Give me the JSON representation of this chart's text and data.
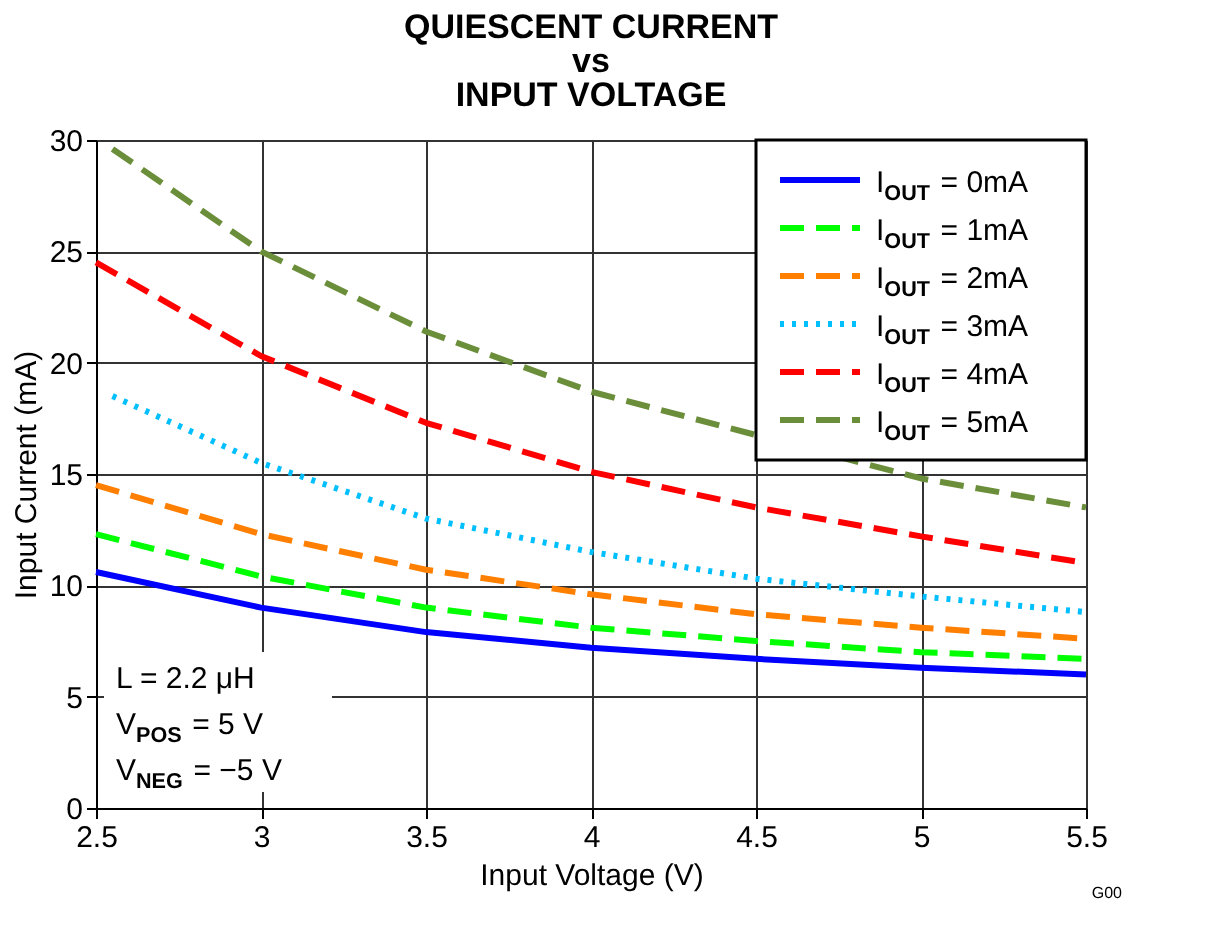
{
  "chart_data": {
    "type": "line",
    "title": "QUIESCENT CURRENT\nvs\nINPUT VOLTAGE",
    "xlabel": "Input Voltage (V)",
    "ylabel": "Input Current (mA)",
    "x": [
      2.5,
      3,
      3.5,
      4,
      4.5,
      5,
      5.5
    ],
    "series": [
      {
        "name": "I$_{OUT}$ = 0mA",
        "color": "#0000ff",
        "line_style": "solid",
        "values": [
          10.6,
          9.0,
          7.9,
          7.2,
          6.7,
          6.3,
          6.0
        ]
      },
      {
        "name": "I$_{OUT}$ = 1mA",
        "color": "#00ff00",
        "line_style": "dashed",
        "values": [
          12.3,
          10.4,
          9.0,
          8.1,
          7.5,
          7.0,
          6.7
        ]
      },
      {
        "name": "I$_{OUT}$ = 2mA",
        "color": "#ff7f00",
        "line_style": "dashed",
        "values": [
          14.5,
          12.3,
          10.7,
          9.6,
          8.7,
          8.1,
          7.6
        ]
      },
      {
        "name": "I$_{OUT}$ = 3mA",
        "color": "#00bfff",
        "line_style": "dotted",
        "x": [
          2.55,
          3,
          3.5,
          4,
          4.5,
          5,
          5.5
        ],
        "values": [
          18.5,
          15.5,
          13.0,
          11.5,
          10.3,
          9.5,
          8.8
        ]
      },
      {
        "name": "I$_{OUT}$ = 4mA",
        "color": "#ff0000",
        "line_style": "dashed",
        "values": [
          24.5,
          20.3,
          17.3,
          15.1,
          13.5,
          12.2,
          11.0
        ]
      },
      {
        "name": "I$_{OUT}$ = 5mA",
        "color": "#6b8e3a",
        "line_style": "dashed",
        "x": [
          2.55,
          3,
          3.5,
          4,
          5,
          5.5
        ],
        "values": [
          29.6,
          25.0,
          21.4,
          18.7,
          14.8,
          13.5
        ]
      }
    ],
    "xlim": [
      2.5,
      5.5
    ],
    "xticks": [
      2.5,
      3,
      3.5,
      4,
      4.5,
      5,
      5.5
    ],
    "ylim": [
      0,
      30
    ],
    "yticks": [
      0,
      5,
      10,
      15,
      20,
      25,
      30
    ],
    "grid": true,
    "legend": "top right",
    "annotations": [
      "L = 2.2 μH",
      "V$_{POS}$ = 5 V",
      "V$_{NEG}$ = −5 V",
      "G00"
    ]
  }
}
